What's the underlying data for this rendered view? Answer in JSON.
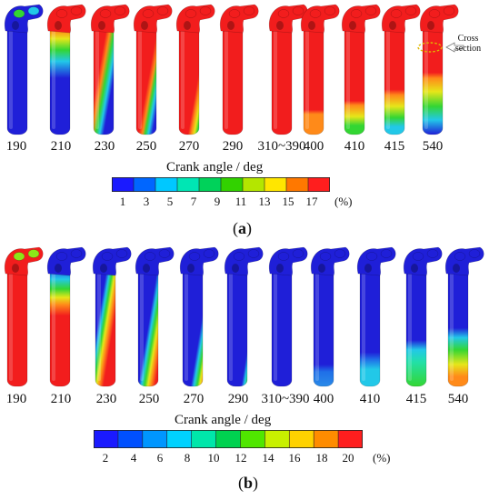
{
  "panel_a": {
    "frame_labels": [
      "190",
      "210",
      "230",
      "250",
      "270",
      "290",
      "310~390",
      "400",
      "410",
      "415",
      "540"
    ],
    "colorbar_title": "Crank angle / deg",
    "colorbar_ticks": [
      "1",
      "3",
      "5",
      "7",
      "9",
      "11",
      "13",
      "15",
      "17"
    ],
    "unit": "(%)",
    "panel_label_open": "(",
    "panel_label_letter": "a",
    "panel_label_close": ")",
    "annotation": "Cross\nsection",
    "colors": [
      "#1a1aff",
      "#0066ff",
      "#00c8ff",
      "#00e6b4",
      "#00d25a",
      "#32d200",
      "#b4e600",
      "#ffe600",
      "#ff7800",
      "#ff1e1e"
    ]
  },
  "panel_b": {
    "frame_labels": [
      "190",
      "210",
      "230",
      "250",
      "270",
      "290",
      "310~390",
      "400",
      "410",
      "415",
      "540"
    ],
    "colorbar_title": "Crank angle / deg",
    "colorbar_ticks": [
      "2",
      "4",
      "6",
      "8",
      "10",
      "12",
      "14",
      "16",
      "18",
      "20"
    ],
    "unit": "(%)",
    "panel_label_open": "(",
    "panel_label_letter": "b",
    "panel_label_close": ")",
    "colors": [
      "#1a1aff",
      "#0050ff",
      "#0096ff",
      "#00d2ff",
      "#00e6aa",
      "#00d250",
      "#50e600",
      "#c8f000",
      "#ffd200",
      "#ff8c00",
      "#ff1e1e"
    ]
  },
  "palette": {
    "red": "#f21d1d",
    "blue": "#1f1fd8",
    "cyan": "#22c8e8",
    "green": "#33d633",
    "yellow": "#e6e619",
    "orange": "#ff8a19"
  }
}
